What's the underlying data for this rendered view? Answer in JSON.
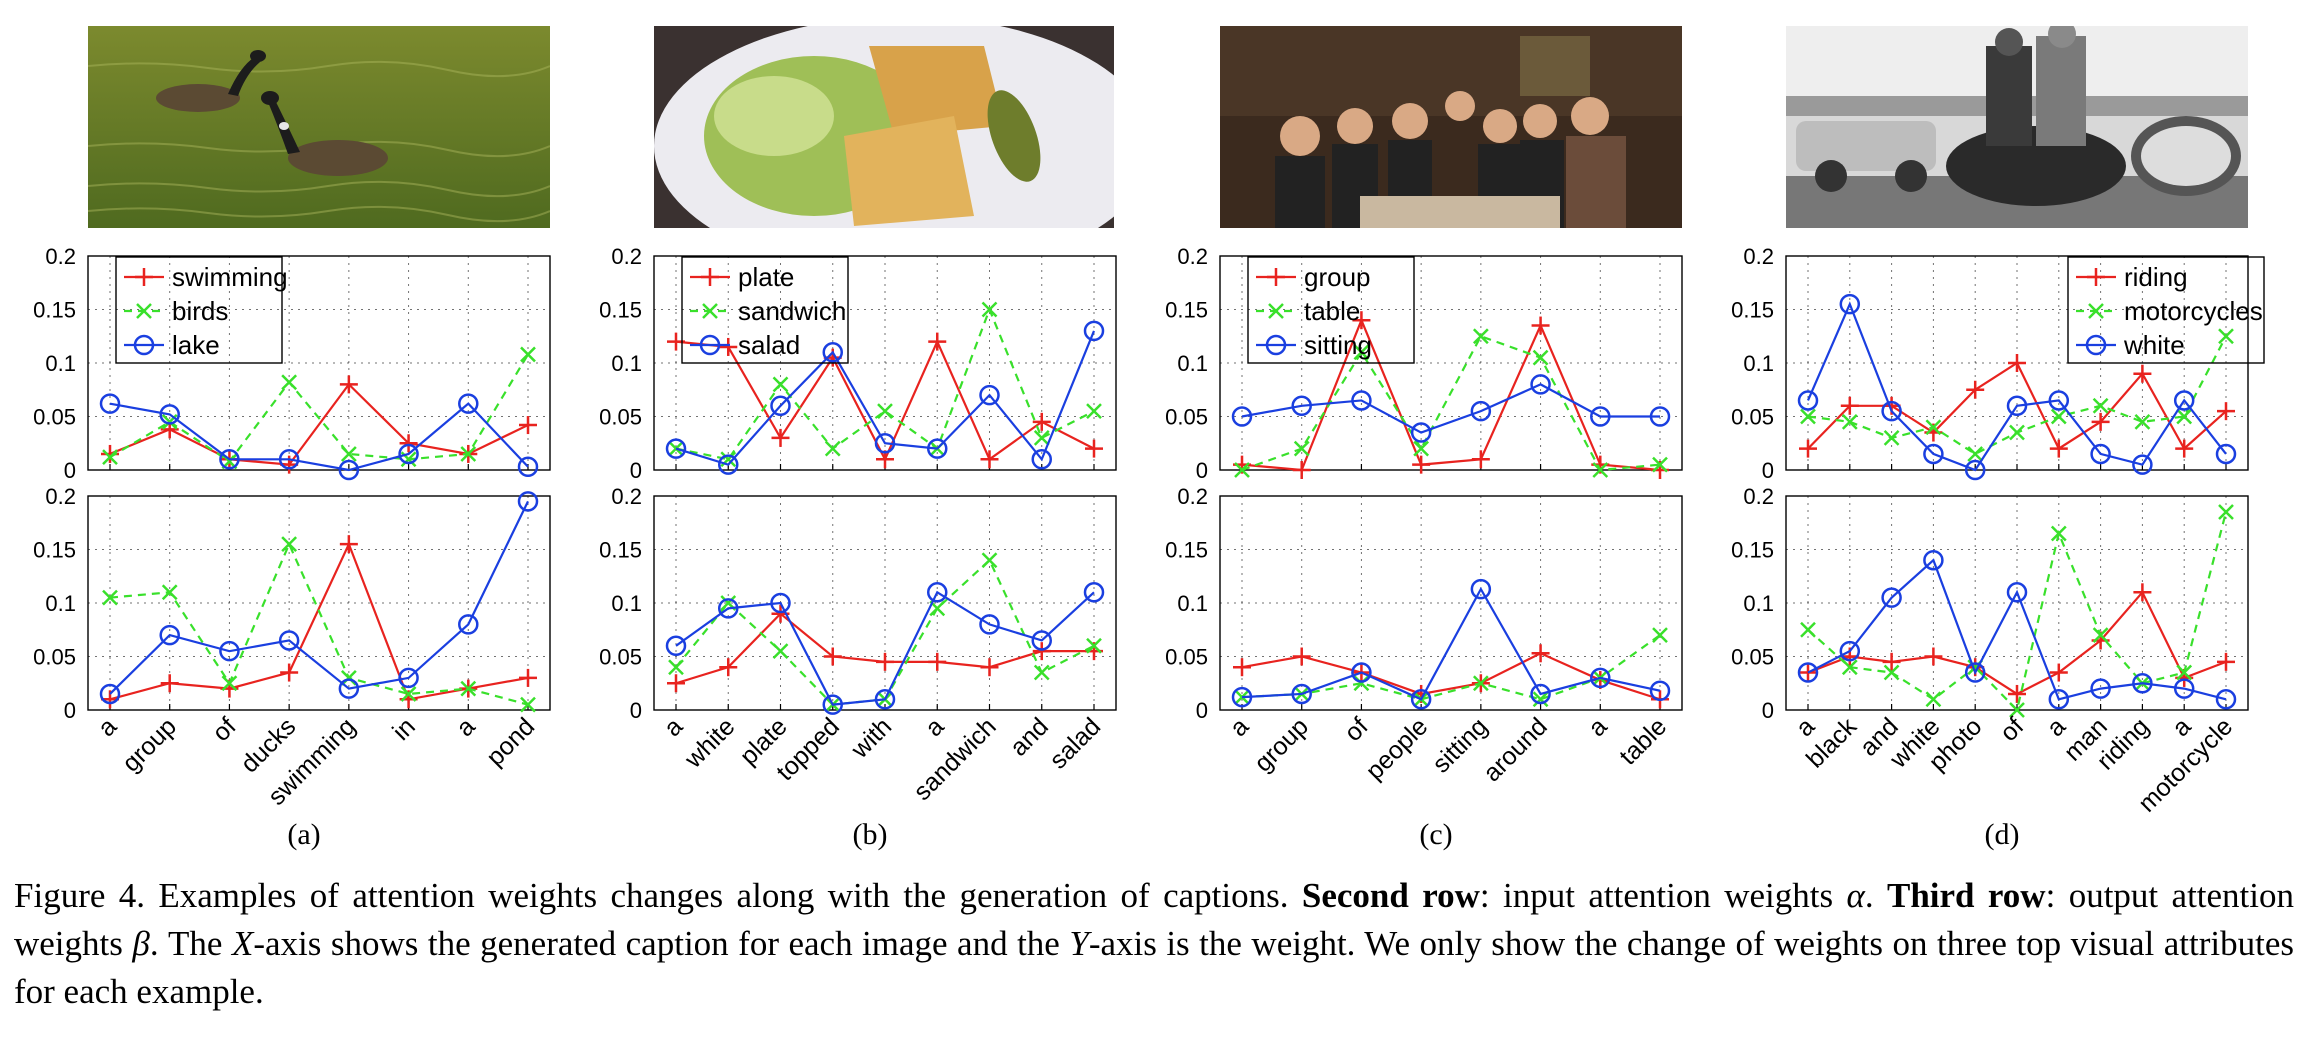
{
  "colors": {
    "red": "#e8231f",
    "green": "#39e02b",
    "blue": "#1a3fe0",
    "axis": "#000000",
    "grid": "#000000"
  },
  "photos": [
    {
      "icon": "geese-on-lake-photo"
    },
    {
      "icon": "sandwich-salad-plate-photo"
    },
    {
      "icon": "group-at-table-photo"
    },
    {
      "icon": "motorcycle-riders-photo"
    }
  ],
  "subfigure_labels": [
    "(a)",
    "(b)",
    "(c)",
    "(d)"
  ],
  "caption": {
    "part1": "Figure 4. Examples of attention weights changes along with the generation of captions. ",
    "bold1": "Second row",
    "part2": ": input attention weights ",
    "sym_alpha": "α",
    "part3": ". ",
    "bold2": "Third row",
    "part4": ": output attention weights ",
    "sym_beta": "β",
    "part5": ". The ",
    "sym_x": "X",
    "part6": "-axis shows the generated caption for each image and the ",
    "sym_y": "Y",
    "part7": "-axis is the weight. We only show the change of weights on three top visual attributes for each example."
  },
  "chart_data": [
    {
      "panel": "a-input",
      "type": "line",
      "ylim": [
        0,
        0.2
      ],
      "yticks": [
        "0",
        "0.05",
        "0.1",
        "0.15",
        "0.2"
      ],
      "legend_position": "top-left",
      "categories": [
        "a",
        "group",
        "of",
        "ducks",
        "swimming",
        "in",
        "a",
        "pond"
      ],
      "series": [
        {
          "name": "swimming",
          "color": "red",
          "marker": "plus",
          "dash": false,
          "values": [
            0.015,
            0.038,
            0.01,
            0.005,
            0.08,
            0.025,
            0.015,
            0.042
          ]
        },
        {
          "name": "birds",
          "color": "green",
          "marker": "x",
          "dash": true,
          "values": [
            0.012,
            0.045,
            0.008,
            0.082,
            0.015,
            0.01,
            0.015,
            0.108
          ]
        },
        {
          "name": "lake",
          "color": "blue",
          "marker": "circle",
          "dash": false,
          "values": [
            0.062,
            0.052,
            0.01,
            0.01,
            0.0,
            0.015,
            0.062,
            0.003
          ]
        }
      ]
    },
    {
      "panel": "b-input",
      "type": "line",
      "ylim": [
        0,
        0.2
      ],
      "yticks": [
        "0",
        "0.05",
        "0.1",
        "0.15",
        "0.2"
      ],
      "legend_position": "top-left",
      "categories": [
        "a",
        "white",
        "plate",
        "topped",
        "with",
        "a",
        "sandwich",
        "and",
        "salad"
      ],
      "series": [
        {
          "name": "plate",
          "color": "red",
          "marker": "plus",
          "dash": false,
          "values": [
            0.12,
            0.115,
            0.03,
            0.105,
            0.01,
            0.12,
            0.01,
            0.045,
            0.02
          ]
        },
        {
          "name": "sandwich",
          "color": "green",
          "marker": "x",
          "dash": true,
          "values": [
            0.02,
            0.01,
            0.08,
            0.02,
            0.055,
            0.02,
            0.15,
            0.03,
            0.055
          ]
        },
        {
          "name": "salad",
          "color": "blue",
          "marker": "circle",
          "dash": false,
          "values": [
            0.02,
            0.005,
            0.06,
            0.11,
            0.025,
            0.02,
            0.07,
            0.01,
            0.13
          ]
        }
      ]
    },
    {
      "panel": "c-input",
      "type": "line",
      "ylim": [
        0,
        0.2
      ],
      "yticks": [
        "0",
        "0.05",
        "0.1",
        "0.15",
        "0.2"
      ],
      "legend_position": "top-left",
      "categories": [
        "a",
        "group",
        "of",
        "people",
        "sitting",
        "around",
        "a",
        "table"
      ],
      "series": [
        {
          "name": "group",
          "color": "red",
          "marker": "plus",
          "dash": false,
          "values": [
            0.005,
            0.0,
            0.14,
            0.005,
            0.01,
            0.135,
            0.005,
            0.0
          ]
        },
        {
          "name": "table",
          "color": "green",
          "marker": "x",
          "dash": true,
          "values": [
            0.0,
            0.02,
            0.11,
            0.02,
            0.125,
            0.105,
            0.0,
            0.005
          ]
        },
        {
          "name": "sitting",
          "color": "blue",
          "marker": "circle",
          "dash": false,
          "values": [
            0.05,
            0.06,
            0.065,
            0.035,
            0.055,
            0.08,
            0.05,
            0.05
          ]
        }
      ]
    },
    {
      "panel": "d-input",
      "type": "line",
      "ylim": [
        0,
        0.2
      ],
      "yticks": [
        "0",
        "0.05",
        "0.1",
        "0.15",
        "0.2"
      ],
      "legend_position": "top-right",
      "categories": [
        "a",
        "black",
        "and",
        "white",
        "photo",
        "of",
        "a",
        "man",
        "riding",
        "a",
        "motorcycle"
      ],
      "series": [
        {
          "name": "riding",
          "color": "red",
          "marker": "plus",
          "dash": false,
          "values": [
            0.02,
            0.06,
            0.06,
            0.035,
            0.075,
            0.1,
            0.02,
            0.045,
            0.09,
            0.02,
            0.055
          ]
        },
        {
          "name": "motorcycles",
          "color": "green",
          "marker": "x",
          "dash": true,
          "values": [
            0.05,
            0.045,
            0.03,
            0.04,
            0.015,
            0.035,
            0.05,
            0.06,
            0.045,
            0.05,
            0.125
          ]
        },
        {
          "name": "white",
          "color": "blue",
          "marker": "circle",
          "dash": false,
          "values": [
            0.065,
            0.155,
            0.055,
            0.015,
            0.0,
            0.06,
            0.065,
            0.015,
            0.005,
            0.065,
            0.015
          ]
        }
      ]
    },
    {
      "panel": "a-output",
      "type": "line",
      "ylim": [
        0,
        0.2
      ],
      "yticks": [
        "0",
        "0.05",
        "0.1",
        "0.15",
        "0.2"
      ],
      "categories": [
        "a",
        "group",
        "of",
        "ducks",
        "swimming",
        "in",
        "a",
        "pond"
      ],
      "series": [
        {
          "color": "red",
          "marker": "plus",
          "dash": false,
          "values": [
            0.01,
            0.025,
            0.02,
            0.035,
            0.155,
            0.01,
            0.02,
            0.03
          ]
        },
        {
          "color": "green",
          "marker": "x",
          "dash": true,
          "values": [
            0.105,
            0.11,
            0.025,
            0.155,
            0.03,
            0.015,
            0.02,
            0.005
          ]
        },
        {
          "color": "blue",
          "marker": "circle",
          "dash": false,
          "values": [
            0.015,
            0.07,
            0.055,
            0.065,
            0.02,
            0.03,
            0.08,
            0.195
          ]
        }
      ]
    },
    {
      "panel": "b-output",
      "type": "line",
      "ylim": [
        0,
        0.2
      ],
      "yticks": [
        "0",
        "0.05",
        "0.1",
        "0.15",
        "0.2"
      ],
      "categories": [
        "a",
        "white",
        "plate",
        "topped",
        "with",
        "a",
        "sandwich",
        "and",
        "salad"
      ],
      "series": [
        {
          "color": "red",
          "marker": "plus",
          "dash": false,
          "values": [
            0.025,
            0.04,
            0.09,
            0.05,
            0.045,
            0.045,
            0.04,
            0.055,
            0.055
          ]
        },
        {
          "color": "green",
          "marker": "x",
          "dash": true,
          "values": [
            0.04,
            0.1,
            0.055,
            0.005,
            0.01,
            0.095,
            0.14,
            0.035,
            0.06
          ]
        },
        {
          "color": "blue",
          "marker": "circle",
          "dash": false,
          "values": [
            0.06,
            0.095,
            0.1,
            0.005,
            0.01,
            0.11,
            0.08,
            0.065,
            0.11
          ]
        }
      ]
    },
    {
      "panel": "c-output",
      "type": "line",
      "ylim": [
        0,
        0.2
      ],
      "yticks": [
        "0",
        "0.05",
        "0.1",
        "0.15",
        "0.2"
      ],
      "categories": [
        "a",
        "group",
        "of",
        "people",
        "sitting",
        "around",
        "a",
        "table"
      ],
      "series": [
        {
          "color": "red",
          "marker": "plus",
          "dash": false,
          "values": [
            0.04,
            0.05,
            0.035,
            0.015,
            0.025,
            0.053,
            0.028,
            0.01
          ]
        },
        {
          "color": "green",
          "marker": "x",
          "dash": true,
          "values": [
            0.012,
            0.015,
            0.025,
            0.01,
            0.025,
            0.01,
            0.03,
            0.07
          ]
        },
        {
          "color": "blue",
          "marker": "circle",
          "dash": false,
          "values": [
            0.012,
            0.015,
            0.035,
            0.01,
            0.113,
            0.015,
            0.03,
            0.018
          ]
        }
      ]
    },
    {
      "panel": "d-output",
      "type": "line",
      "ylim": [
        0,
        0.2
      ],
      "yticks": [
        "0",
        "0.05",
        "0.1",
        "0.15",
        "0.2"
      ],
      "categories": [
        "a",
        "black",
        "and",
        "white",
        "photo",
        "of",
        "a",
        "man",
        "riding",
        "a",
        "motorcycle"
      ],
      "series": [
        {
          "color": "red",
          "marker": "plus",
          "dash": false,
          "values": [
            0.035,
            0.05,
            0.045,
            0.05,
            0.04,
            0.015,
            0.035,
            0.065,
            0.11,
            0.03,
            0.045
          ]
        },
        {
          "color": "green",
          "marker": "x",
          "dash": true,
          "values": [
            0.075,
            0.04,
            0.035,
            0.01,
            0.04,
            0.0,
            0.165,
            0.07,
            0.025,
            0.035,
            0.185
          ]
        },
        {
          "color": "blue",
          "marker": "circle",
          "dash": false,
          "values": [
            0.035,
            0.055,
            0.105,
            0.14,
            0.035,
            0.11,
            0.01,
            0.02,
            0.025,
            0.02,
            0.01
          ]
        }
      ]
    }
  ]
}
